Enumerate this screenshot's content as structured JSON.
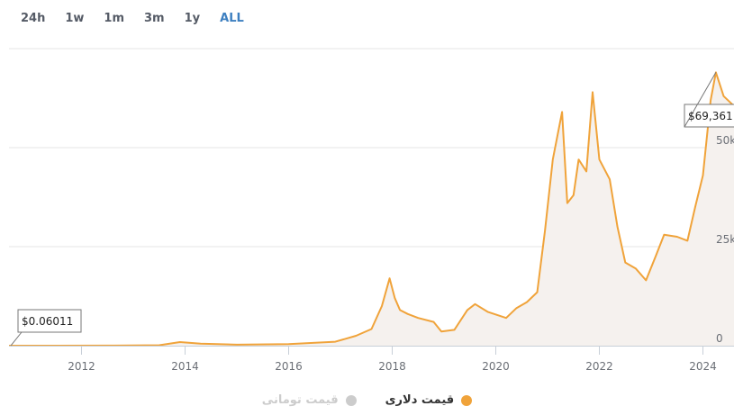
{
  "range_selector": {
    "buttons": [
      "24h",
      "1w",
      "1m",
      "3m",
      "1y",
      "ALL"
    ],
    "active": "ALL"
  },
  "colors": {
    "usd_line": "#f0a33a",
    "area_fill": "#f5f1ee",
    "grid": "#e6e6e6",
    "toman_legend": "#cccccc",
    "active_range": "#3d7fc0"
  },
  "chart_data": {
    "type": "area",
    "xlim": [
      2010.6,
      2024.6
    ],
    "ylim": [
      0,
      75000
    ],
    "x_ticks": [
      2012,
      2014,
      2016,
      2018,
      2020,
      2022,
      2024
    ],
    "x_tick_labels": [
      "2012",
      "2014",
      "2016",
      "2018",
      "2020",
      "2022",
      "2024"
    ],
    "y_ticks": [
      0,
      25000,
      50000
    ],
    "y_tick_labels": [
      "0",
      "25k",
      "50k"
    ],
    "grid": true,
    "series": [
      {
        "name": "قیمت دلاری",
        "x": [
          2010.6,
          2011.5,
          2012.5,
          2013.5,
          2013.9,
          2014.3,
          2015.0,
          2016.0,
          2016.9,
          2017.3,
          2017.6,
          2017.8,
          2017.95,
          2018.05,
          2018.15,
          2018.3,
          2018.5,
          2018.8,
          2018.95,
          2019.2,
          2019.45,
          2019.6,
          2019.85,
          2020.2,
          2020.4,
          2020.6,
          2020.8,
          2020.95,
          2021.1,
          2021.28,
          2021.38,
          2021.5,
          2021.6,
          2021.75,
          2021.87,
          2022.0,
          2022.2,
          2022.35,
          2022.5,
          2022.7,
          2022.9,
          2023.1,
          2023.25,
          2023.5,
          2023.7,
          2023.85,
          2024.0,
          2024.15,
          2024.25,
          2024.4,
          2024.6
        ],
        "y": [
          0.06011,
          3,
          12,
          120,
          900,
          500,
          250,
          420,
          1000,
          2500,
          4200,
          10000,
          17000,
          12000,
          9000,
          8000,
          7000,
          6000,
          3600,
          4000,
          9000,
          10500,
          8500,
          7000,
          9500,
          11000,
          13500,
          29000,
          47000,
          59000,
          36000,
          38000,
          47000,
          44000,
          64000,
          47000,
          42000,
          30000,
          21000,
          19500,
          16500,
          23000,
          28000,
          27500,
          26500,
          35000,
          43000,
          62000,
          69000,
          63000,
          60500
        ]
      }
    ],
    "annotations": [
      {
        "label": "$0.06011",
        "x": 2010.6,
        "y": 0.06011
      },
      {
        "label": "$69,361",
        "x": 2024.25,
        "y": 69000
      }
    ],
    "legend": {
      "position": "bottom",
      "items": [
        {
          "label": "قیمت دلاری",
          "color": "#f0a33a",
          "enabled": true
        },
        {
          "label": "قیمت تومانی",
          "color": "#cccccc",
          "enabled": false
        }
      ]
    }
  }
}
